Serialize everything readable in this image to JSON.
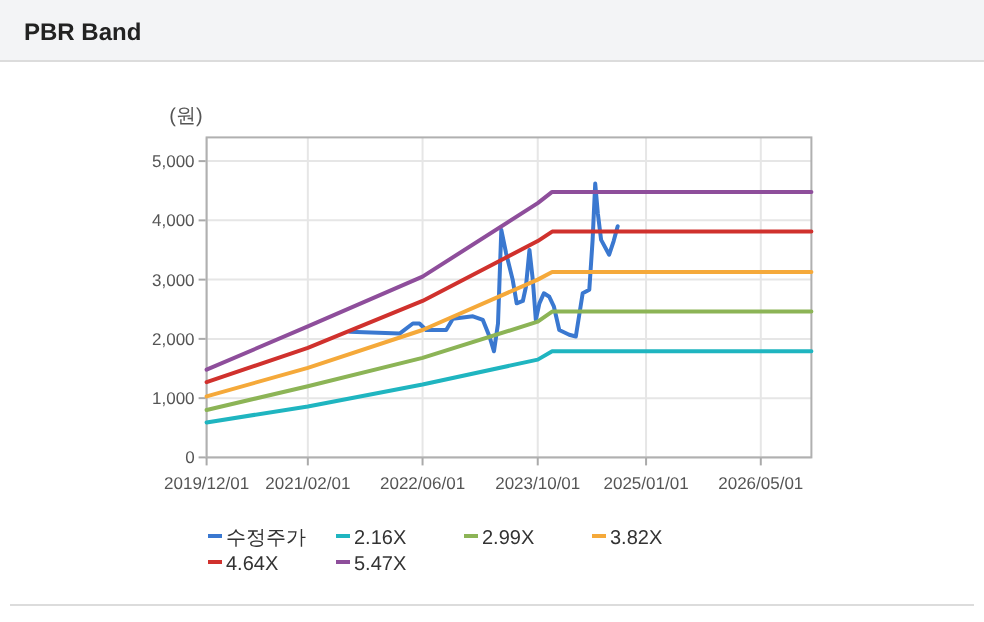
{
  "chart_data": {
    "type": "line",
    "title": "PBR Band",
    "ylabel": "(원)",
    "xlim": [
      "2019-12-01",
      "2026-12-01"
    ],
    "ylim": [
      0,
      5400
    ],
    "xticks": [
      {
        "value": "2019-12-01",
        "label": "2019/12/01"
      },
      {
        "value": "2021-02-01",
        "label": "2021/02/01"
      },
      {
        "value": "2022-06-01",
        "label": "2022/06/01"
      },
      {
        "value": "2023-10-01",
        "label": "2023/10/01"
      },
      {
        "value": "2025-01-01",
        "label": "2025/01/01"
      },
      {
        "value": "2026-05-01",
        "label": "2026/05/01"
      }
    ],
    "yticks": [
      0,
      {
        "value": 1000,
        "label": "1,000"
      },
      {
        "value": 2000,
        "label": "2,000"
      },
      {
        "value": 3000,
        "label": "3,000"
      },
      {
        "value": 4000,
        "label": "4,000"
      },
      {
        "value": 5000,
        "label": "5,000"
      }
    ],
    "grid": true,
    "legend": "bottom",
    "series": [
      {
        "name": "수정주가",
        "color": "#3a78d0",
        "x": [
          "2021-07-28",
          "2022-02-24",
          "2022-04-21",
          "2022-05-19",
          "2022-06-16",
          "2022-09-09",
          "2022-10-07",
          "2022-12-31",
          "2023-02-11",
          "2023-03-11",
          "2023-03-30",
          "2023-04-16",
          "2023-04-30",
          "2023-05-20",
          "2023-06-17",
          "2023-07-04",
          "2023-07-30",
          "2023-08-12",
          "2023-08-27",
          "2023-09-10",
          "2023-09-23",
          "2023-10-08",
          "2023-10-27",
          "2023-11-19",
          "2023-12-08",
          "2023-12-31",
          "2024-02-11",
          "2024-03-10",
          "2024-04-08",
          "2024-05-06",
          "2024-05-20",
          "2024-05-31",
          "2024-06-11",
          "2024-06-25",
          "2024-07-29",
          "2024-08-17",
          "2024-09-03"
        ],
        "values": [
          2120,
          2090,
          2260,
          2260,
          2150,
          2150,
          2340,
          2380,
          2320,
          2040,
          1790,
          2260,
          3840,
          3450,
          3000,
          2600,
          2640,
          2880,
          3500,
          3000,
          2320,
          2600,
          2770,
          2710,
          2550,
          2150,
          2070,
          2040,
          2770,
          2830,
          3670,
          4620,
          4120,
          3670,
          3420,
          3650,
          3900
        ]
      },
      {
        "name": "2.16X",
        "color": "#1fb5c0",
        "x": [
          "2019-12-01",
          "2021-02-01",
          "2022-06-01",
          "2023-10-01",
          "2023-12-01",
          "2026-12-01"
        ],
        "values": [
          590,
          860,
          1230,
          1650,
          1790,
          1790
        ]
      },
      {
        "name": "2.99X",
        "color": "#8cb456",
        "x": [
          "2019-12-01",
          "2021-02-01",
          "2022-06-01",
          "2023-10-01",
          "2023-12-01",
          "2026-12-01"
        ],
        "values": [
          800,
          1200,
          1680,
          2290,
          2460,
          2460
        ]
      },
      {
        "name": "3.82X",
        "color": "#f5a93a",
        "x": [
          "2019-12-01",
          "2021-02-01",
          "2022-06-01",
          "2023-10-01",
          "2023-12-01",
          "2026-12-01"
        ],
        "values": [
          1030,
          1510,
          2150,
          3000,
          3130,
          3130
        ]
      },
      {
        "name": "4.64X",
        "color": "#d0312d",
        "x": [
          "2019-12-01",
          "2021-02-01",
          "2022-06-01",
          "2023-10-01",
          "2023-12-01",
          "2026-12-01"
        ],
        "values": [
          1270,
          1850,
          2640,
          3650,
          3810,
          3810
        ]
      },
      {
        "name": "5.47X",
        "color": "#8e4e9b",
        "x": [
          "2019-12-01",
          "2021-02-01",
          "2022-06-01",
          "2023-10-01",
          "2023-12-01",
          "2026-12-01"
        ],
        "values": [
          1480,
          2210,
          3050,
          4290,
          4480,
          4480
        ]
      }
    ]
  }
}
